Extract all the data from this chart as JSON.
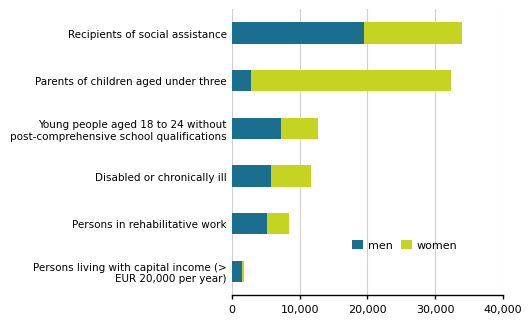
{
  "categories": [
    "Recipients of social assistance",
    "Parents of children aged under three",
    "Young people aged 18 to 24 without\npost-comprehensive school qualifications",
    "Disabled or chronically ill",
    "Persons in rehabilitative work",
    "Persons living with capital income (>\nEUR 20,000 per year)"
  ],
  "men": [
    19500,
    2800,
    7200,
    5800,
    5200,
    1400
  ],
  "women": [
    14500,
    29500,
    5500,
    5800,
    3200,
    400
  ],
  "men_color": "#1a6e8e",
  "women_color": "#c5d420",
  "xlim": [
    0,
    40000
  ],
  "xticks": [
    0,
    10000,
    20000,
    30000,
    40000
  ],
  "xtick_labels": [
    "0",
    "10,000",
    "20,000",
    "30,000",
    "40,000"
  ],
  "legend_labels": [
    "men",
    "women"
  ],
  "bar_height": 0.45,
  "grid_color": "#d0d0d0",
  "background_color": "#ffffff",
  "label_fontsize": 7.5,
  "tick_fontsize": 8.0
}
